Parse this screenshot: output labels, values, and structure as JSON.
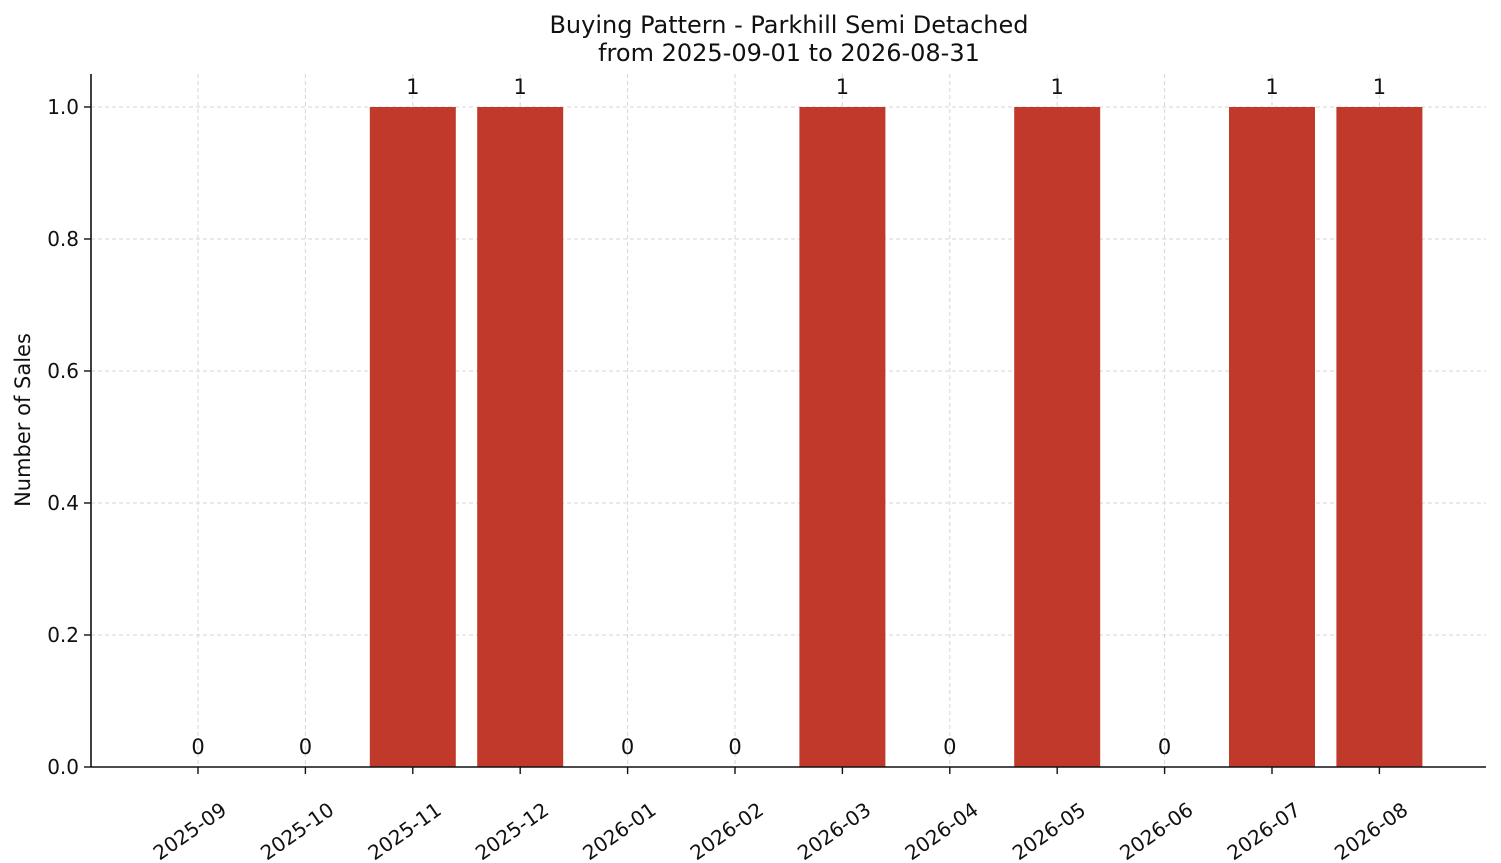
{
  "chart_data": {
    "type": "bar",
    "title": "Buying Pattern - Parkhill Semi Detached",
    "subtitle": "from 2025-09-01 to 2026-08-31",
    "xlabel": "",
    "ylabel": "Number of Sales",
    "categories": [
      "2025-09",
      "2025-10",
      "2025-11",
      "2025-12",
      "2026-01",
      "2026-02",
      "2026-03",
      "2026-04",
      "2026-05",
      "2026-06",
      "2026-07",
      "2026-08"
    ],
    "values": [
      0,
      0,
      1,
      1,
      0,
      0,
      1,
      0,
      1,
      0,
      1,
      1
    ],
    "data_labels": [
      "0",
      "0",
      "1",
      "1",
      "0",
      "0",
      "1",
      "0",
      "1",
      "0",
      "1",
      "1"
    ],
    "ylim": [
      0,
      1.05
    ],
    "yticks": [
      "0.0",
      "0.2",
      "0.4",
      "0.6",
      "0.8",
      "1.0"
    ],
    "grid": true,
    "bar_color": "#c0392b"
  }
}
